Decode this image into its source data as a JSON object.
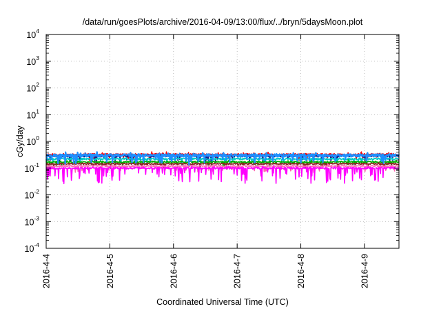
{
  "chart_data": {
    "type": "line",
    "title": "/data/run/goesPlots/archive/2016-04-09/13:00/flux/../bryn/5daysMoon.plot",
    "xlabel": "Coordinated Universal Time (UTC)",
    "ylabel": "cGy/day",
    "y_scale": "log",
    "ylim": [
      0.0001,
      10000
    ],
    "xlim": [
      "2016-04-04 00:00",
      "2016-04-09 13:00"
    ],
    "grid": true,
    "legend": "none",
    "y_ticks": [
      {
        "base": "10",
        "exp": "4",
        "value": 10000
      },
      {
        "base": "10",
        "exp": "3",
        "value": 1000
      },
      {
        "base": "10",
        "exp": "2",
        "value": 100
      },
      {
        "base": "10",
        "exp": "1",
        "value": 10
      },
      {
        "base": "10",
        "exp": "0",
        "value": 1
      },
      {
        "base": "10",
        "exp": "-1",
        "value": 0.1
      },
      {
        "base": "10",
        "exp": "-2",
        "value": 0.01
      },
      {
        "base": "10",
        "exp": "-3",
        "value": 0.001
      },
      {
        "base": "10",
        "exp": "-4",
        "value": 0.0001
      }
    ],
    "x_ticks": [
      {
        "label": "2016-4-4",
        "value": "2016-04-04 00:00"
      },
      {
        "label": "2016-4-5",
        "value": "2016-04-05 00:00"
      },
      {
        "label": "2016-4-6",
        "value": "2016-04-06 00:00"
      },
      {
        "label": "2016-4-7",
        "value": "2016-04-07 00:00"
      },
      {
        "label": "2016-4-8",
        "value": "2016-04-08 00:00"
      },
      {
        "label": "2016-4-9",
        "value": "2016-04-09 00:00"
      }
    ],
    "series": [
      {
        "color": "#ff0000",
        "level": 0.32,
        "seed": 11,
        "noise": 0.1,
        "dipProb": 0.05,
        "dipDepth": 0.4
      },
      {
        "color": "#1a1a8c",
        "level": 0.29,
        "seed": 23,
        "noise": 0.1,
        "dipProb": 0.05,
        "dipDepth": 0.45
      },
      {
        "color": "#00c8c8",
        "level": 0.22,
        "seed": 37,
        "noise": 0.08,
        "dipProb": 0.05,
        "dipDepth": 0.4
      },
      {
        "color": "#00b000",
        "level": 0.17,
        "seed": 41,
        "noise": 0.07,
        "dipProb": 0.05,
        "dipDepth": 0.35
      },
      {
        "color": "#8b2323",
        "level": 0.145,
        "seed": 53,
        "noise": 0.06,
        "dipProb": 0.05,
        "dipDepth": 0.35
      },
      {
        "color": "#ff69b4",
        "level": 0.12,
        "seed": 67,
        "noise": 0.06,
        "dipProb": 0.06,
        "dipDepth": 0.4
      },
      {
        "color": "#ff00ff",
        "level": 0.1,
        "seed": 79,
        "noise": 0.08,
        "dipProb": 0.12,
        "dipDepth": 0.75
      },
      {
        "color": "#1e90ff",
        "level": 0.3,
        "seed": 97,
        "noise": 0.12,
        "dipProb": 0.08,
        "dipDepth": 0.55
      }
    ]
  }
}
